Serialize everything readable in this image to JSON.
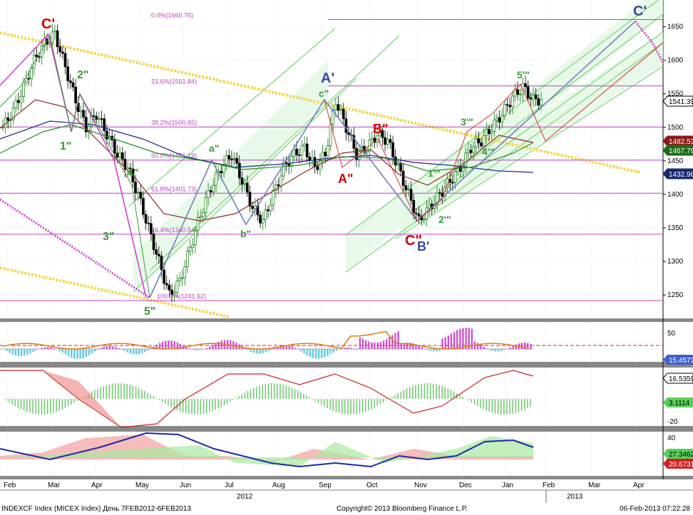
{
  "chart_data": {
    "type": "line",
    "x_axis": {
      "months": [
        "Feb",
        "Mar",
        "Apr",
        "May",
        "Jun",
        "Jul",
        "Aug",
        "Sep",
        "Oct",
        "Nov",
        "Dec",
        "Jan",
        "Feb",
        "Mar",
        "Apr"
      ],
      "years": [
        "2012",
        "2013"
      ]
    },
    "main_panel": {
      "y_ticks": [
        1250,
        1300,
        1350,
        1400,
        1450,
        1500,
        1550,
        1600,
        1650
      ],
      "ylim": [
        1215,
        1690
      ],
      "fib_levels": [
        {
          "label": "0.0%(1660.76)",
          "value": 1660.76
        },
        {
          "label": "23.6%(1561.84)",
          "value": 1561.84
        },
        {
          "label": "38.2%(1500.65)",
          "value": 1500.65
        },
        {
          "label": "50.0%(1451.19)",
          "value": 1451.19
        },
        {
          "label": "61.8%(1401.73)",
          "value": 1401.73
        },
        {
          "label": "76.4%(1340.54)",
          "value": 1340.54
        },
        {
          "label": "100.0%(1241.62)",
          "value": 1241.62
        }
      ],
      "price_series": [
        1500,
        1525,
        1560,
        1600,
        1625,
        1640,
        1590,
        1540,
        1500,
        1520,
        1490,
        1460,
        1440,
        1400,
        1350,
        1300,
        1250,
        1270,
        1320,
        1370,
        1410,
        1440,
        1460,
        1420,
        1380,
        1360,
        1400,
        1440,
        1460,
        1470,
        1440,
        1460,
        1540,
        1500,
        1460,
        1470,
        1490,
        1480,
        1440,
        1400,
        1360,
        1380,
        1400,
        1420,
        1440,
        1470,
        1480,
        1500,
        1520,
        1545,
        1560,
        1541
      ],
      "price_labels": [
        {
          "value": "1541.39",
          "color": "#000000"
        },
        {
          "value": "1482.53",
          "color": "#8b1a1a"
        },
        {
          "value": "1467.79",
          "color": "#0a6e0a"
        },
        {
          "value": "1432.98",
          "color": "#0a1a6e"
        }
      ],
      "wave_labels": [
        {
          "text": "C'",
          "color": "#cc0000"
        },
        {
          "text": "2\"",
          "color": "#3a9a3a"
        },
        {
          "text": "1\"",
          "color": "#3a9a3a"
        },
        {
          "text": "4\"",
          "color": "#3a9a3a"
        },
        {
          "text": "3\"",
          "color": "#3a9a3a"
        },
        {
          "text": "5\"",
          "color": "#3a9a3a"
        },
        {
          "text": "a\"",
          "color": "#3a9a3a"
        },
        {
          "text": "b\"",
          "color": "#3a9a3a"
        },
        {
          "text": "A'",
          "color": "#3a4aa0"
        },
        {
          "text": "c\"",
          "color": "#3a9a3a"
        },
        {
          "text": "A\"",
          "color": "#cc0000"
        },
        {
          "text": "B\"",
          "color": "#cc0000"
        },
        {
          "text": "C\"",
          "color": "#cc0000"
        },
        {
          "text": "B'",
          "color": "#3a4aa0"
        },
        {
          "text": "1'\"",
          "color": "#3a9a3a"
        },
        {
          "text": "2'\"",
          "color": "#3a9a3a"
        },
        {
          "text": "3'\"",
          "color": "#3a9a3a"
        },
        {
          "text": "4'\"",
          "color": "#3a9a3a"
        },
        {
          "text": "5'\"",
          "color": "#3a9a3a"
        },
        {
          "text": "C'",
          "color": "#3a4aa0"
        }
      ]
    },
    "panel2": {
      "y_ticks": [
        "50"
      ],
      "value_label": "15.4573"
    },
    "panel3": {
      "y_ticks": [
        "-20"
      ],
      "value_labels": [
        "16.5359",
        "3.1114"
      ]
    },
    "panel4": {
      "y_ticks": [
        "40"
      ],
      "value_labels": [
        "27.3462",
        "20.6731"
      ]
    }
  },
  "footer": {
    "left": "INDEXCF Index (MICEX Index) День 7FEB2012-6FEB2013",
    "center": "Copyright© 2013 Bloomberg Finance L.P.",
    "right": "06-Feb-2013 07:22:28"
  },
  "colors": {
    "fib": "#c040c0",
    "price_up": "#0a7a0a",
    "price_down": "#000000",
    "channel": "#7fd67f",
    "trend_yellow": "#f0d84a",
    "wave_blue": "#6f7fc0",
    "wave_magenta": "#d040d0"
  }
}
